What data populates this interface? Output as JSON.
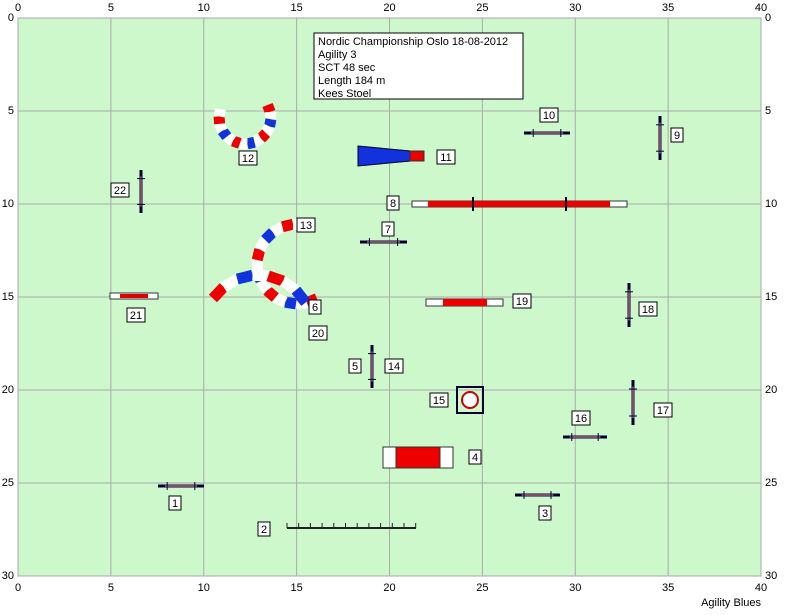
{
  "info": {
    "lines": [
      "Nordic Championship Oslo 18-08-2012",
      "Agility 3",
      "SCT 48 sec",
      "Length 184 m",
      "Kees Stoel"
    ]
  },
  "axes": {
    "xticks": [
      0,
      5,
      10,
      15,
      20,
      25,
      30,
      35,
      40
    ],
    "yticks": [
      0,
      5,
      10,
      15,
      20,
      25,
      30
    ]
  },
  "obstacles": [
    {
      "label": "1"
    },
    {
      "label": "2"
    },
    {
      "label": "3"
    },
    {
      "label": "4"
    },
    {
      "label": "5"
    },
    {
      "label": "6"
    },
    {
      "label": "7"
    },
    {
      "label": "8"
    },
    {
      "label": "9"
    },
    {
      "label": "10"
    },
    {
      "label": "11"
    },
    {
      "label": "12"
    },
    {
      "label": "13"
    },
    {
      "label": "14"
    },
    {
      "label": "15"
    },
    {
      "label": "16"
    },
    {
      "label": "17"
    },
    {
      "label": "18"
    },
    {
      "label": "19"
    },
    {
      "label": "20"
    },
    {
      "label": "21"
    },
    {
      "label": "22"
    }
  ],
  "footer": "Agility Blues"
}
